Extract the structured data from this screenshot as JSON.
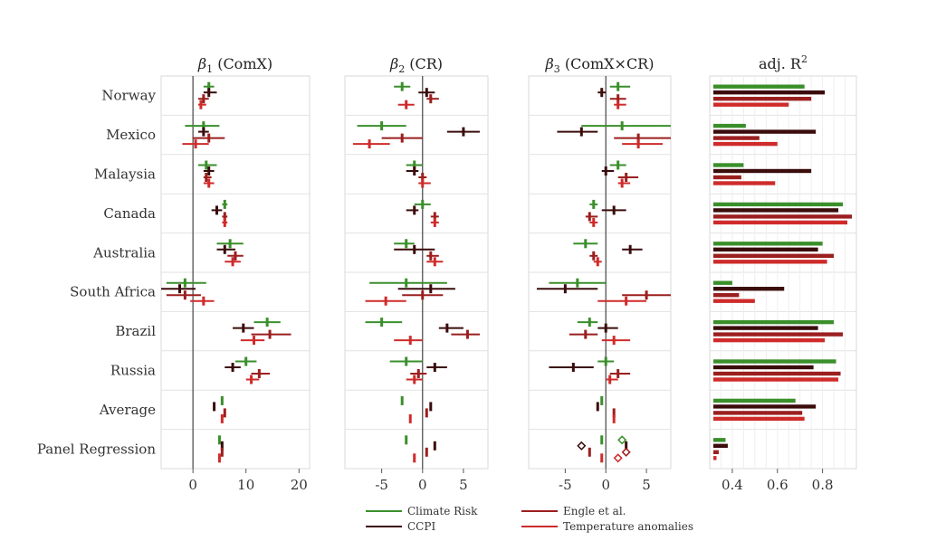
{
  "colors": {
    "climate": "#3a8f2b",
    "ccpi": "#3b0c0c",
    "engle": "#9b1f1f",
    "temp": "#cf2b2b"
  },
  "legend": {
    "items": [
      {
        "key": "climate",
        "label": "Climate Risk"
      },
      {
        "key": "ccpi",
        "label": "CCPI"
      },
      {
        "key": "engle",
        "label": "Engle et al."
      },
      {
        "key": "temp",
        "label": "Temperature anomalies"
      }
    ]
  },
  "chart_data": {
    "type": "forest",
    "rows": [
      "Norway",
      "Mexico",
      "Malaysia",
      "Canada",
      "Australia",
      "South Africa",
      "Brazil",
      "Russia",
      "Average",
      "Panel Regression"
    ],
    "series": [
      "climate",
      "ccpi",
      "engle",
      "temp"
    ],
    "panels": [
      {
        "id": "b1",
        "title": "β1 (ComX)",
        "title_main": "β",
        "title_sub": "1",
        "title_rest": " (ComX)",
        "xlim": [
          -6,
          22
        ],
        "ticks": [
          0,
          10,
          20
        ],
        "tick_labels": [
          "0",
          "10",
          "20"
        ],
        "points": [
          [
            [
              3,
              2,
              4
            ],
            [
              3,
              2,
              4.5
            ],
            [
              2,
              1,
              3
            ],
            [
              1.5,
              1,
              2.5
            ]
          ],
          [
            [
              2,
              -1.5,
              5
            ],
            [
              2,
              1,
              3
            ],
            [
              3,
              0,
              6
            ],
            [
              0.5,
              -2,
              3
            ]
          ],
          [
            [
              2.5,
              1,
              4.5
            ],
            [
              3,
              2,
              4
            ],
            [
              2.5,
              2,
              3.5
            ],
            [
              3,
              2,
              4
            ]
          ],
          [
            [
              6,
              5.5,
              6.5
            ],
            [
              4.5,
              3.5,
              5.5
            ],
            [
              6,
              5.5,
              6.5
            ],
            [
              6,
              5.5,
              6.5
            ]
          ],
          [
            [
              7,
              4.5,
              9.5
            ],
            [
              6,
              4.5,
              8
            ],
            [
              8,
              6.5,
              9.5
            ],
            [
              7.5,
              6,
              9
            ]
          ],
          [
            [
              -1.5,
              -5,
              2.5
            ],
            [
              -2.5,
              -6,
              0.5
            ],
            [
              -1.5,
              -5,
              1.5
            ],
            [
              2,
              -0.5,
              4
            ]
          ],
          [
            [
              14,
              11.5,
              16.5
            ],
            [
              9.5,
              7.5,
              11.5
            ],
            [
              14.5,
              11,
              18.5
            ],
            [
              11.5,
              9,
              13.5
            ]
          ],
          [
            [
              10,
              8,
              12
            ],
            [
              7.5,
              6,
              9
            ],
            [
              12.5,
              11,
              14.5
            ],
            [
              11,
              10,
              12.5
            ]
          ],
          [
            [
              5.5,
              5.5,
              5.5
            ],
            [
              4,
              4,
              4
            ],
            [
              6,
              6,
              6
            ],
            [
              5.5,
              5.5,
              5.5
            ]
          ],
          [
            [
              5,
              5,
              5
            ],
            [
              5.5,
              5.5,
              5.5
            ],
            [
              5.5,
              5.5,
              5.5
            ],
            [
              5,
              5,
              5
            ]
          ]
        ]
      },
      {
        "id": "b2",
        "title": "β2 (CR)",
        "title_main": "β",
        "title_sub": "2",
        "title_rest": " (CR)",
        "xlim": [
          -9.5,
          8
        ],
        "ticks": [
          -5,
          0,
          5
        ],
        "tick_labels": [
          "-5",
          "0",
          "5"
        ],
        "points": [
          [
            [
              -2.5,
              -3.5,
              -1.5
            ],
            [
              0.5,
              -0.5,
              1.5
            ],
            [
              1,
              0.5,
              2
            ],
            [
              -2,
              -3,
              -1
            ]
          ],
          [
            [
              -5,
              -8,
              -2
            ],
            [
              5,
              3,
              7
            ],
            [
              -2.5,
              -5,
              0
            ],
            [
              -6.5,
              -8.5,
              -4
            ]
          ],
          [
            [
              -1,
              -2,
              0
            ],
            [
              -1,
              -2,
              -0.5
            ],
            [
              0,
              -0.5,
              0.5
            ],
            [
              0,
              -0.5,
              1
            ]
          ],
          [
            [
              0,
              -1,
              1
            ],
            [
              -1,
              -2,
              -0.5
            ],
            [
              1.5,
              1,
              2
            ],
            [
              1.5,
              1,
              2
            ]
          ],
          [
            [
              -2,
              -3.5,
              -1
            ],
            [
              -1,
              -3.5,
              1.5
            ],
            [
              1,
              0.5,
              2
            ],
            [
              1.5,
              0.5,
              2.5
            ]
          ],
          [
            [
              -2,
              -6.5,
              3
            ],
            [
              1,
              -3,
              4
            ],
            [
              0,
              -2.5,
              2.5
            ],
            [
              -4.5,
              -7,
              -2
            ]
          ],
          [
            [
              -5,
              -7,
              -2.5
            ],
            [
              3,
              2,
              5
            ],
            [
              5.5,
              3.5,
              7
            ],
            [
              -1.5,
              -3.5,
              0
            ]
          ],
          [
            [
              -2,
              -4,
              0
            ],
            [
              1.5,
              0.5,
              3
            ],
            [
              -0.5,
              -1.5,
              0.5
            ],
            [
              -1,
              -2,
              0
            ]
          ],
          [
            [
              -2.5,
              -2.5,
              -2.5
            ],
            [
              1,
              1,
              1
            ],
            [
              0.5,
              0.5,
              0.5
            ],
            [
              -1.5,
              -1.5,
              -1.5
            ]
          ],
          [
            [
              -2,
              -2,
              -2
            ],
            [
              1.5,
              1.5,
              1.5
            ],
            [
              0.5,
              0.5,
              0.5
            ],
            [
              -1,
              -1,
              -1
            ]
          ]
        ]
      },
      {
        "id": "b3",
        "title": "β3 (ComX×CR)",
        "title_main": "β",
        "title_sub": "3",
        "title_rest": " (ComX×CR)",
        "xlim": [
          -9.5,
          8
        ],
        "ticks": [
          -5,
          0,
          5
        ],
        "tick_labels": [
          "-5",
          "0",
          "5"
        ],
        "points": [
          [
            [
              1.5,
              0.5,
              3
            ],
            [
              -0.5,
              -1,
              0
            ],
            [
              1.5,
              0.5,
              2.5
            ],
            [
              1.5,
              1,
              2.5
            ]
          ],
          [
            [
              2,
              -3,
              8
            ],
            [
              -3,
              -6,
              -1
            ],
            [
              4,
              1,
              8
            ],
            [
              4,
              2,
              7
            ]
          ],
          [
            [
              1.5,
              0.5,
              2.5
            ],
            [
              0,
              -0.5,
              1
            ],
            [
              2.5,
              1.5,
              4
            ],
            [
              2,
              1.5,
              3
            ]
          ],
          [
            [
              -1.5,
              -2,
              -1
            ],
            [
              1,
              -0.5,
              2.5
            ],
            [
              -2,
              -2.5,
              -1
            ],
            [
              -1.5,
              -2,
              -1
            ]
          ],
          [
            [
              -2.5,
              -4,
              -1
            ],
            [
              3,
              2,
              4.5
            ],
            [
              -1.5,
              -2,
              -1
            ],
            [
              -1,
              -1.5,
              -0.5
            ]
          ],
          [
            [
              -3.5,
              -7,
              0
            ],
            [
              -5,
              -8.5,
              -1
            ],
            [
              5,
              2,
              8
            ],
            [
              2.5,
              -1,
              5
            ]
          ],
          [
            [
              -2,
              -3.5,
              -1
            ],
            [
              0,
              -1,
              1.5
            ],
            [
              -2.5,
              -4.5,
              -1
            ],
            [
              1,
              -0.5,
              3
            ]
          ],
          [
            [
              0,
              -1,
              1
            ],
            [
              -4,
              -7,
              -1.5
            ],
            [
              1.5,
              0.5,
              3
            ],
            [
              0.5,
              0,
              1.5
            ]
          ],
          [
            [
              -0.5,
              -0.5,
              -0.5
            ],
            [
              -1,
              -1,
              -1
            ],
            [
              1,
              1,
              1
            ],
            [
              1,
              1,
              1
            ]
          ],
          [
            [
              -0.5,
              -0.5,
              -0.5
            ],
            [
              2.5,
              2.5,
              2.5
            ],
            [
              -2,
              -2,
              -2
            ],
            [
              -0.5,
              -0.5,
              -0.5
            ]
          ]
        ],
        "diamonds": [
          {
            "row": 9,
            "series": 0,
            "x": 2,
            "filled": false
          },
          {
            "row": 9,
            "series": 1,
            "x": -3,
            "filled": false
          },
          {
            "row": 9,
            "series": 2,
            "x": 2.5,
            "filled": false
          },
          {
            "row": 9,
            "series": 3,
            "x": 1.5,
            "filled": false
          }
        ]
      },
      {
        "id": "r2",
        "type": "barh",
        "title": "adj. R2",
        "title_main": "adj. R",
        "title_sup": "2",
        "xlim": [
          0.3,
          0.95
        ],
        "ticks": [
          0.4,
          0.6,
          0.8
        ],
        "tick_labels": [
          "0.4",
          "0.6",
          "0.8"
        ],
        "values": [
          [
            0.72,
            0.81,
            0.75,
            0.65
          ],
          [
            0.46,
            0.77,
            0.52,
            0.6
          ],
          [
            0.45,
            0.75,
            0.44,
            0.59
          ],
          [
            0.89,
            0.87,
            0.93,
            0.91
          ],
          [
            0.8,
            0.78,
            0.85,
            0.82
          ],
          [
            0.4,
            0.63,
            0.43,
            0.5
          ],
          [
            0.85,
            0.78,
            0.89,
            0.81
          ],
          [
            0.86,
            0.76,
            0.88,
            0.87
          ],
          [
            0.68,
            0.77,
            0.71,
            0.72
          ],
          [
            0.37,
            0.38,
            0.34,
            0.33
          ]
        ]
      }
    ]
  }
}
